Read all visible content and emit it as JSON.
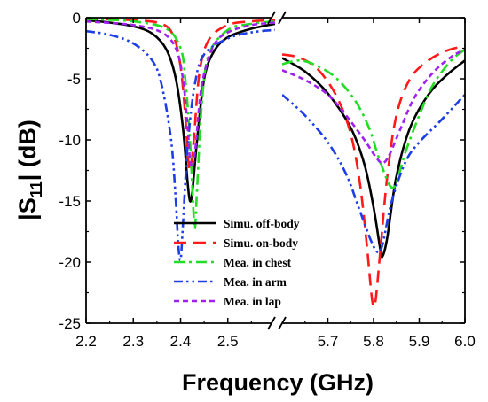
{
  "chart_data": {
    "type": "line",
    "xlabel": "Frequency (GHz)",
    "ylabel_main": "|S",
    "ylabel_sub": "11",
    "ylabel_tail": "| (dB)",
    "ylim": [
      -25,
      0
    ],
    "yticks": [
      0,
      -5,
      -10,
      -15,
      -20,
      -25
    ],
    "ytick_labels": [
      "0",
      "-5",
      "-10",
      "-15",
      "-20",
      "-25"
    ],
    "axis_break": true,
    "x_left_range": [
      2.2,
      2.6
    ],
    "x_right_range": [
      5.6,
      6.0
    ],
    "xticks_left": [
      2.2,
      2.3,
      2.4,
      2.5
    ],
    "xtick_labels_left": [
      "2.2",
      "2.3",
      "2.4",
      "2.5"
    ],
    "xticks_right": [
      5.7,
      5.8,
      5.9,
      6.0
    ],
    "xtick_labels_right": [
      "5.7",
      "5.8",
      "5.9",
      "6.0"
    ],
    "legend_position": "bottom-center",
    "series": [
      {
        "name": "Simu. off-body",
        "color": "#000000",
        "dash": "solid",
        "low": [
          [
            2.2,
            -0.2
          ],
          [
            2.25,
            -0.4
          ],
          [
            2.3,
            -0.7
          ],
          [
            2.34,
            -1.3
          ],
          [
            2.37,
            -2.6
          ],
          [
            2.39,
            -5.0
          ],
          [
            2.405,
            -9.0
          ],
          [
            2.415,
            -13.5
          ],
          [
            2.42,
            -15.0
          ],
          [
            2.425,
            -14.2
          ],
          [
            2.435,
            -10.0
          ],
          [
            2.45,
            -5.0
          ],
          [
            2.47,
            -2.8
          ],
          [
            2.5,
            -1.6
          ],
          [
            2.55,
            -0.9
          ],
          [
            2.6,
            -0.5
          ]
        ],
        "high": [
          [
            5.6,
            -3.3
          ],
          [
            5.65,
            -4.4
          ],
          [
            5.7,
            -6.2
          ],
          [
            5.75,
            -9.0
          ],
          [
            5.78,
            -12.0
          ],
          [
            5.8,
            -15.5
          ],
          [
            5.815,
            -19.0
          ],
          [
            5.82,
            -19.5
          ],
          [
            5.83,
            -18.0
          ],
          [
            5.85,
            -13.0
          ],
          [
            5.88,
            -9.0
          ],
          [
            5.92,
            -6.3
          ],
          [
            5.96,
            -4.7
          ],
          [
            6.0,
            -3.5
          ]
        ]
      },
      {
        "name": "Simu. on-body",
        "color": "#ff1a1a",
        "dash": "long",
        "low": [
          [
            2.2,
            -0.1
          ],
          [
            2.3,
            -0.2
          ],
          [
            2.36,
            -0.5
          ],
          [
            2.385,
            -1.5
          ],
          [
            2.4,
            -4.0
          ],
          [
            2.41,
            -8.0
          ],
          [
            2.415,
            -11.0
          ],
          [
            2.42,
            -12.4
          ],
          [
            2.428,
            -10.0
          ],
          [
            2.44,
            -4.5
          ],
          [
            2.46,
            -1.8
          ],
          [
            2.5,
            -0.6
          ],
          [
            2.55,
            -0.3
          ],
          [
            2.6,
            -0.2
          ]
        ],
        "high": [
          [
            5.6,
            -3.0
          ],
          [
            5.64,
            -3.3
          ],
          [
            5.68,
            -4.3
          ],
          [
            5.72,
            -6.5
          ],
          [
            5.75,
            -9.5
          ],
          [
            5.77,
            -13.5
          ],
          [
            5.785,
            -18.5
          ],
          [
            5.795,
            -22.5
          ],
          [
            5.8,
            -23.6
          ],
          [
            5.805,
            -23.0
          ],
          [
            5.815,
            -19.0
          ],
          [
            5.83,
            -13.0
          ],
          [
            5.85,
            -8.0
          ],
          [
            5.88,
            -5.0
          ],
          [
            5.92,
            -3.5
          ],
          [
            5.96,
            -2.7
          ],
          [
            6.0,
            -2.3
          ]
        ]
      },
      {
        "name": "Mea. in chest",
        "color": "#22dd22",
        "dash": "dashdot",
        "low": [
          [
            2.2,
            -0.1
          ],
          [
            2.3,
            -0.3
          ],
          [
            2.37,
            -0.9
          ],
          [
            2.4,
            -2.5
          ],
          [
            2.41,
            -5.0
          ],
          [
            2.42,
            -10.0
          ],
          [
            2.425,
            -14.0
          ],
          [
            2.43,
            -17.3
          ],
          [
            2.435,
            -14.0
          ],
          [
            2.445,
            -7.0
          ],
          [
            2.46,
            -3.0
          ],
          [
            2.5,
            -1.0
          ],
          [
            2.55,
            -0.5
          ],
          [
            2.6,
            -0.3
          ]
        ],
        "high": [
          [
            5.6,
            -3.8
          ],
          [
            5.64,
            -3.5
          ],
          [
            5.68,
            -4.0
          ],
          [
            5.72,
            -5.0
          ],
          [
            5.76,
            -6.8
          ],
          [
            5.79,
            -9.0
          ],
          [
            5.81,
            -11.3
          ],
          [
            5.83,
            -13.3
          ],
          [
            5.84,
            -13.9
          ],
          [
            5.85,
            -13.5
          ],
          [
            5.87,
            -11.0
          ],
          [
            5.9,
            -8.0
          ],
          [
            5.93,
            -5.5
          ],
          [
            5.97,
            -3.5
          ],
          [
            6.0,
            -2.6
          ]
        ]
      },
      {
        "name": "Mea. in arm",
        "color": "#1d3de6",
        "dash": "dashdotdot",
        "low": [
          [
            2.2,
            -1.1
          ],
          [
            2.25,
            -1.4
          ],
          [
            2.3,
            -2.1
          ],
          [
            2.34,
            -3.5
          ],
          [
            2.36,
            -5.5
          ],
          [
            2.38,
            -10.0
          ],
          [
            2.39,
            -15.0
          ],
          [
            2.395,
            -18.5
          ],
          [
            2.4,
            -19.8
          ],
          [
            2.405,
            -17.0
          ],
          [
            2.415,
            -10.5
          ],
          [
            2.43,
            -5.5
          ],
          [
            2.45,
            -3.0
          ],
          [
            2.5,
            -1.7
          ],
          [
            2.55,
            -1.2
          ],
          [
            2.6,
            -1.0
          ]
        ],
        "high": [
          [
            5.6,
            -6.3
          ],
          [
            5.65,
            -8.0
          ],
          [
            5.7,
            -10.2
          ],
          [
            5.74,
            -12.8
          ],
          [
            5.77,
            -15.8
          ],
          [
            5.795,
            -18.3
          ],
          [
            5.81,
            -19.2
          ],
          [
            5.82,
            -18.5
          ],
          [
            5.84,
            -15.0
          ],
          [
            5.87,
            -11.8
          ],
          [
            5.9,
            -10.2
          ],
          [
            5.95,
            -8.3
          ],
          [
            6.0,
            -6.3
          ]
        ]
      },
      {
        "name": "Mea. in lap",
        "color": "#a020f0",
        "dash": "short",
        "low": [
          [
            2.2,
            -0.3
          ],
          [
            2.3,
            -0.6
          ],
          [
            2.36,
            -1.2
          ],
          [
            2.39,
            -2.5
          ],
          [
            2.405,
            -5.0
          ],
          [
            2.415,
            -9.0
          ],
          [
            2.42,
            -11.7
          ],
          [
            2.425,
            -12.2
          ],
          [
            2.432,
            -10.5
          ],
          [
            2.445,
            -5.5
          ],
          [
            2.47,
            -2.3
          ],
          [
            2.5,
            -1.2
          ],
          [
            2.55,
            -0.6
          ],
          [
            2.6,
            -0.4
          ]
        ],
        "high": [
          [
            5.6,
            -4.3
          ],
          [
            5.65,
            -5.1
          ],
          [
            5.7,
            -6.3
          ],
          [
            5.74,
            -8.0
          ],
          [
            5.78,
            -10.0
          ],
          [
            5.805,
            -11.4
          ],
          [
            5.82,
            -11.9
          ],
          [
            5.835,
            -11.2
          ],
          [
            5.86,
            -9.0
          ],
          [
            5.89,
            -6.5
          ],
          [
            5.93,
            -4.5
          ],
          [
            5.97,
            -3.2
          ],
          [
            6.0,
            -2.6
          ]
        ]
      }
    ]
  }
}
